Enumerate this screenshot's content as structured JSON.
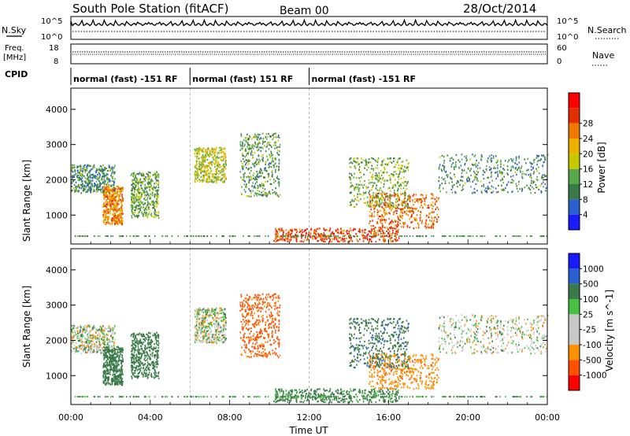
{
  "header": {
    "station": "South Pole Station (fitACF)",
    "beam": "Beam 00",
    "date": "28/Oct/2014"
  },
  "left_labels": {
    "nsky": "N.Sky",
    "freq_line1": "Freq.",
    "freq_line2": "[MHz]",
    "cpid": "CPID"
  },
  "right_labels": {
    "nsearch": "N.Search",
    "nave": "Nave"
  },
  "noise_panel": {
    "left_ticks": [
      "10^5",
      "10^0"
    ],
    "right_ticks": [
      "10^5",
      "10^0"
    ]
  },
  "freq_panel": {
    "left_ticks": [
      "18",
      "8"
    ],
    "right_ticks": [
      "60",
      "0"
    ]
  },
  "cpid_segments": [
    {
      "label": "normal (fast) -151 RF",
      "start_hour": 0
    },
    {
      "label": "normal (fast) 151 RF",
      "start_hour": 6
    },
    {
      "label": "normal (fast) -151 RF",
      "start_hour": 12
    }
  ],
  "colors": {
    "power": [
      "#1a1aff",
      "#2a5fd0",
      "#3a7a48",
      "#56a84a",
      "#c8c800",
      "#f0b000",
      "#f07800",
      "#e03000",
      "#ff0000"
    ],
    "velocity": [
      "#ff0000",
      "#ff5000",
      "#ff9000",
      "#c8c8c8",
      "#c8c8c8",
      "#48c040",
      "#3a7a48",
      "#2a5fd0",
      "#1a1aff"
    ]
  },
  "chart_data": [
    {
      "type": "heatmap",
      "quantity": "power",
      "ylabel": "Slant Range [km]",
      "ylim": [
        180,
        4600
      ],
      "yticks": [
        1000,
        2000,
        3000,
        4000
      ],
      "x_range_hours": [
        0,
        24
      ],
      "colorbar": {
        "label": "Power [dB]",
        "range": [
          0,
          32
        ],
        "ticks": [
          "4",
          "8",
          "12",
          "16",
          "20",
          "24",
          "28"
        ]
      },
      "scatter_regions": [
        {
          "t": [
            0.0,
            2.2
          ],
          "r": [
            1600,
            2400
          ],
          "v": 10
        },
        {
          "t": [
            1.6,
            2.6
          ],
          "r": [
            700,
            1800
          ],
          "v": 22
        },
        {
          "t": [
            3.0,
            4.4
          ],
          "r": [
            900,
            2200
          ],
          "v": 12
        },
        {
          "t": [
            6.2,
            7.8
          ],
          "r": [
            1900,
            2900
          ],
          "v": 16
        },
        {
          "t": [
            8.5,
            10.5
          ],
          "r": [
            1500,
            3300
          ],
          "v": 11
        },
        {
          "t": [
            10.2,
            16.5
          ],
          "r": [
            220,
            600
          ],
          "v": 26
        },
        {
          "t": [
            15.0,
            18.5
          ],
          "r": [
            600,
            1600
          ],
          "v": 24
        },
        {
          "t": [
            18.5,
            24.0
          ],
          "r": [
            1600,
            2700
          ],
          "v": 10
        },
        {
          "t": [
            14.0,
            17.0
          ],
          "r": [
            1200,
            2600
          ],
          "v": 13
        }
      ]
    },
    {
      "type": "heatmap",
      "quantity": "velocity",
      "ylabel": "Slant Range [km]",
      "xlabel": "Time UT",
      "ylim": [
        180,
        4600
      ],
      "yticks": [
        1000,
        2000,
        3000,
        4000
      ],
      "x_range_hours": [
        0,
        24
      ],
      "xticks": [
        "00:00",
        "04:00",
        "08:00",
        "12:00",
        "16:00",
        "20:00",
        "00:00"
      ],
      "colorbar": {
        "label": "Velocity [m s^-1]",
        "ticks": [
          "1000",
          "500",
          "100",
          "25",
          "-25",
          "-100",
          "-500",
          "-1000"
        ]
      },
      "scatter_regions": [
        {
          "t": [
            0.0,
            2.2
          ],
          "r": [
            1600,
            2400
          ],
          "v": 0
        },
        {
          "t": [
            1.6,
            2.6
          ],
          "r": [
            700,
            1800
          ],
          "v": 300
        },
        {
          "t": [
            3.0,
            4.4
          ],
          "r": [
            900,
            2200
          ],
          "v": 300
        },
        {
          "t": [
            6.2,
            7.8
          ],
          "r": [
            1900,
            2900
          ],
          "v": 0
        },
        {
          "t": [
            8.5,
            10.5
          ],
          "r": [
            1500,
            3300
          ],
          "v": -600
        },
        {
          "t": [
            10.2,
            16.5
          ],
          "r": [
            220,
            600
          ],
          "v": 200
        },
        {
          "t": [
            15.0,
            18.5
          ],
          "r": [
            600,
            1600
          ],
          "v": -400
        },
        {
          "t": [
            18.5,
            24.0
          ],
          "r": [
            1600,
            2700
          ],
          "v": 0
        },
        {
          "t": [
            14.0,
            17.0
          ],
          "r": [
            1200,
            2600
          ],
          "v": 400
        }
      ]
    }
  ]
}
